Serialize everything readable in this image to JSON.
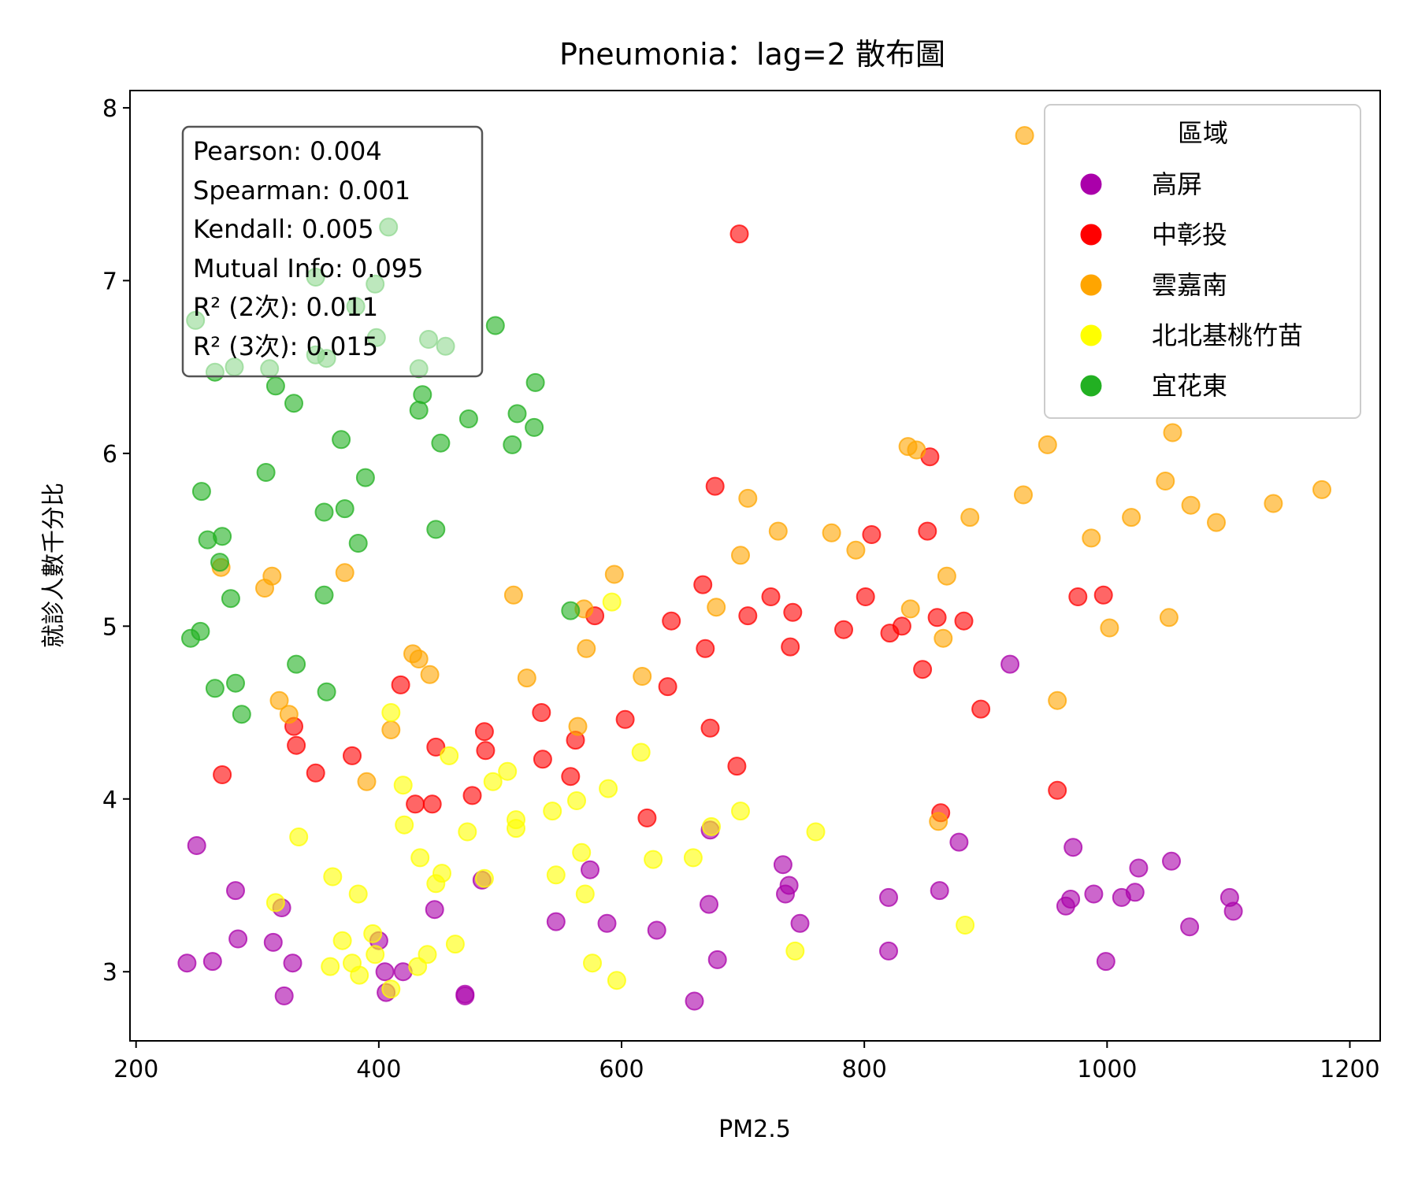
{
  "chart_data": {
    "type": "scatter",
    "title": "Pneumonia：lag=2 散布圖",
    "xlabel": "PM2.5",
    "ylabel": "就診人數千分比",
    "xlim": [
      195,
      1225
    ],
    "ylim": [
      2.6,
      8.1
    ],
    "xticks": [
      200,
      400,
      600,
      800,
      1000,
      1200
    ],
    "yticks": [
      3,
      4,
      5,
      6,
      7,
      8
    ],
    "grid": false,
    "legend": {
      "title": "區域",
      "placement": "top-right"
    },
    "stats": [
      "Pearson: 0.004",
      "Spearman: 0.001",
      "Kendall: 0.005",
      "Mutual Info: 0.095",
      "R² (2次): 0.011",
      "R² (3次): 0.015"
    ],
    "series": [
      {
        "name": "高屏",
        "color": "#aa00aa",
        "points": [
          [
            242,
            3.05
          ],
          [
            263,
            3.06
          ],
          [
            250,
            3.73
          ],
          [
            282,
            3.47
          ],
          [
            284,
            3.19
          ],
          [
            313,
            3.17
          ],
          [
            320,
            3.37
          ],
          [
            329,
            3.05
          ],
          [
            322,
            2.86
          ],
          [
            400,
            3.18
          ],
          [
            405,
            3.0
          ],
          [
            406,
            2.88
          ],
          [
            420,
            3.0
          ],
          [
            446,
            3.36
          ],
          [
            471,
            2.87
          ],
          [
            471,
            2.86
          ],
          [
            485,
            3.53
          ],
          [
            546,
            3.29
          ],
          [
            574,
            3.59
          ],
          [
            588,
            3.28
          ],
          [
            629,
            3.24
          ],
          [
            660,
            2.83
          ],
          [
            672,
            3.39
          ],
          [
            679,
            3.07
          ],
          [
            673,
            3.82
          ],
          [
            733,
            3.62
          ],
          [
            735,
            3.45
          ],
          [
            738,
            3.5
          ],
          [
            747,
            3.28
          ],
          [
            820,
            3.43
          ],
          [
            820,
            3.12
          ],
          [
            862,
            3.47
          ],
          [
            878,
            3.75
          ],
          [
            920,
            4.78
          ],
          [
            966,
            3.38
          ],
          [
            970,
            3.42
          ],
          [
            972,
            3.72
          ],
          [
            989,
            3.45
          ],
          [
            999,
            3.06
          ],
          [
            1012,
            3.43
          ],
          [
            1023,
            3.46
          ],
          [
            1026,
            3.6
          ],
          [
            1053,
            3.64
          ],
          [
            1068,
            3.26
          ],
          [
            1101,
            3.43
          ],
          [
            1104,
            3.35
          ]
        ]
      },
      {
        "name": "中彰投",
        "color": "#ff0000",
        "points": [
          [
            697,
            7.27
          ],
          [
            271,
            4.14
          ],
          [
            330,
            4.42
          ],
          [
            332,
            4.31
          ],
          [
            348,
            4.15
          ],
          [
            378,
            4.25
          ],
          [
            418,
            4.66
          ],
          [
            430,
            3.97
          ],
          [
            444,
            3.97
          ],
          [
            447,
            4.3
          ],
          [
            477,
            4.02
          ],
          [
            487,
            4.39
          ],
          [
            488,
            4.28
          ],
          [
            534,
            4.5
          ],
          [
            535,
            4.23
          ],
          [
            558,
            4.13
          ],
          [
            562,
            4.34
          ],
          [
            578,
            5.06
          ],
          [
            603,
            4.46
          ],
          [
            621,
            3.89
          ],
          [
            638,
            4.65
          ],
          [
            641,
            5.03
          ],
          [
            667,
            5.24
          ],
          [
            669,
            4.87
          ],
          [
            673,
            4.41
          ],
          [
            677,
            5.81
          ],
          [
            695,
            4.19
          ],
          [
            704,
            5.06
          ],
          [
            723,
            5.17
          ],
          [
            739,
            4.88
          ],
          [
            741,
            5.08
          ],
          [
            783,
            4.98
          ],
          [
            801,
            5.17
          ],
          [
            806,
            5.53
          ],
          [
            821,
            4.96
          ],
          [
            831,
            5.0
          ],
          [
            848,
            4.75
          ],
          [
            852,
            5.55
          ],
          [
            854,
            5.98
          ],
          [
            860,
            5.05
          ],
          [
            863,
            3.92
          ],
          [
            882,
            5.03
          ],
          [
            896,
            4.52
          ],
          [
            959,
            4.05
          ],
          [
            976,
            5.17
          ],
          [
            997,
            5.18
          ]
        ]
      },
      {
        "name": "雲嘉南",
        "color": "#ffa500",
        "points": [
          [
            932,
            7.84
          ],
          [
            270,
            5.34
          ],
          [
            306,
            5.22
          ],
          [
            312,
            5.29
          ],
          [
            318,
            4.57
          ],
          [
            326,
            4.49
          ],
          [
            372,
            5.31
          ],
          [
            390,
            4.1
          ],
          [
            410,
            4.4
          ],
          [
            428,
            4.84
          ],
          [
            433,
            4.81
          ],
          [
            442,
            4.72
          ],
          [
            511,
            5.18
          ],
          [
            522,
            4.7
          ],
          [
            564,
            4.42
          ],
          [
            569,
            5.1
          ],
          [
            571,
            4.87
          ],
          [
            594,
            5.3
          ],
          [
            617,
            4.71
          ],
          [
            678,
            5.11
          ],
          [
            698,
            5.41
          ],
          [
            704,
            5.74
          ],
          [
            729,
            5.55
          ],
          [
            773,
            5.54
          ],
          [
            793,
            5.44
          ],
          [
            836,
            6.04
          ],
          [
            843,
            6.02
          ],
          [
            838,
            5.1
          ],
          [
            861,
            3.87
          ],
          [
            865,
            4.93
          ],
          [
            868,
            5.29
          ],
          [
            887,
            5.63
          ],
          [
            931,
            5.76
          ],
          [
            951,
            6.05
          ],
          [
            959,
            4.57
          ],
          [
            987,
            5.51
          ],
          [
            1002,
            4.99
          ],
          [
            1020,
            5.63
          ],
          [
            1048,
            5.84
          ],
          [
            1051,
            5.05
          ],
          [
            1054,
            6.12
          ],
          [
            1069,
            5.7
          ],
          [
            1090,
            5.6
          ],
          [
            1137,
            5.71
          ],
          [
            1177,
            5.79
          ]
        ]
      },
      {
        "name": "北北基桃竹苗",
        "color": "#ffff00",
        "points": [
          [
            315,
            3.4
          ],
          [
            334,
            3.78
          ],
          [
            362,
            3.55
          ],
          [
            360,
            3.03
          ],
          [
            370,
            3.18
          ],
          [
            378,
            3.05
          ],
          [
            383,
            3.45
          ],
          [
            384,
            2.98
          ],
          [
            395,
            3.22
          ],
          [
            397,
            3.1
          ],
          [
            410,
            4.5
          ],
          [
            410,
            2.9
          ],
          [
            420,
            4.08
          ],
          [
            421,
            3.85
          ],
          [
            432,
            3.03
          ],
          [
            434,
            3.66
          ],
          [
            440,
            3.1
          ],
          [
            447,
            3.51
          ],
          [
            452,
            3.57
          ],
          [
            458,
            4.25
          ],
          [
            463,
            3.16
          ],
          [
            473,
            3.81
          ],
          [
            487,
            3.54
          ],
          [
            494,
            4.1
          ],
          [
            506,
            4.16
          ],
          [
            513,
            3.88
          ],
          [
            513,
            3.83
          ],
          [
            543,
            3.93
          ],
          [
            546,
            3.56
          ],
          [
            563,
            3.99
          ],
          [
            567,
            3.69
          ],
          [
            570,
            3.45
          ],
          [
            576,
            3.05
          ],
          [
            589,
            4.06
          ],
          [
            592,
            5.14
          ],
          [
            596,
            2.95
          ],
          [
            616,
            4.27
          ],
          [
            626,
            3.65
          ],
          [
            659,
            3.66
          ],
          [
            674,
            3.84
          ],
          [
            698,
            3.93
          ],
          [
            743,
            3.12
          ],
          [
            760,
            3.81
          ],
          [
            883,
            3.27
          ]
        ]
      },
      {
        "name": "宜花東",
        "color": "#22b022",
        "points": [
          [
            408,
            7.31
          ],
          [
            348,
            7.02
          ],
          [
            397,
            6.98
          ],
          [
            249,
            6.77
          ],
          [
            381,
            6.85
          ],
          [
            398,
            6.67
          ],
          [
            348,
            6.57
          ],
          [
            357,
            6.55
          ],
          [
            265,
            6.47
          ],
          [
            281,
            6.5
          ],
          [
            310,
            6.49
          ],
          [
            315,
            6.39
          ],
          [
            441,
            6.66
          ],
          [
            455,
            6.62
          ],
          [
            433,
            6.49
          ],
          [
            330,
            6.29
          ],
          [
            436,
            6.34
          ],
          [
            433,
            6.25
          ],
          [
            496,
            6.74
          ],
          [
            529,
            6.41
          ],
          [
            474,
            6.2
          ],
          [
            514,
            6.23
          ],
          [
            528,
            6.15
          ],
          [
            510,
            6.05
          ],
          [
            451,
            6.06
          ],
          [
            369,
            6.08
          ],
          [
            307,
            5.89
          ],
          [
            389,
            5.86
          ],
          [
            254,
            5.78
          ],
          [
            355,
            5.66
          ],
          [
            372,
            5.68
          ],
          [
            447,
            5.56
          ],
          [
            259,
            5.5
          ],
          [
            271,
            5.52
          ],
          [
            269,
            5.37
          ],
          [
            383,
            5.48
          ],
          [
            355,
            5.18
          ],
          [
            278,
            5.16
          ],
          [
            558,
            5.09
          ],
          [
            245,
            4.93
          ],
          [
            253,
            4.97
          ],
          [
            265,
            4.64
          ],
          [
            282,
            4.67
          ],
          [
            332,
            4.78
          ],
          [
            357,
            4.62
          ],
          [
            287,
            4.49
          ]
        ]
      }
    ]
  }
}
